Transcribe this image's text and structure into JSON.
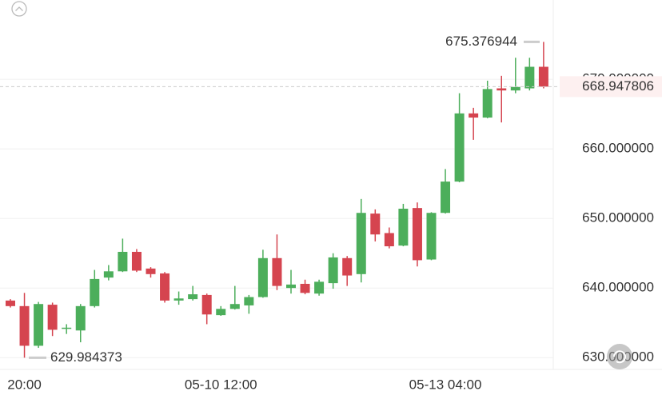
{
  "chart_data": {
    "type": "candlestick",
    "categories": [
      null,
      "20:00",
      null,
      null,
      null,
      null,
      null,
      null,
      null,
      null,
      null,
      null,
      null,
      null,
      null,
      "05-10 12:00",
      null,
      null,
      null,
      null,
      null,
      null,
      null,
      null,
      null,
      null,
      null,
      null,
      null,
      null,
      null,
      "05-13 04:00",
      null,
      null,
      null,
      null,
      null,
      null,
      null
    ],
    "open": [
      638.2,
      637.4,
      631.7,
      637.6,
      634.2,
      633.9,
      637.4,
      641.5,
      642.4,
      645.2,
      642.8,
      642.1,
      638.2,
      638.4,
      639.0,
      636.1,
      637.0,
      637.5,
      638.7,
      644.3,
      640.0,
      640.6,
      639.2,
      640.7,
      644.3,
      642.0,
      650.7,
      647.9,
      646.1,
      651.5,
      644.1,
      650.8,
      655.3,
      665.1,
      664.5,
      668.7,
      668.4,
      668.7,
      671.8
    ],
    "high": [
      638.4,
      639.3,
      638.0,
      637.9,
      634.8,
      637.7,
      642.6,
      643.3,
      647.1,
      645.6,
      643.0,
      642.3,
      639.5,
      640.3,
      639.2,
      637.4,
      640.3,
      639.0,
      645.5,
      647.7,
      642.6,
      641.2,
      641.2,
      645.0,
      644.6,
      652.8,
      651.3,
      648.7,
      652.1,
      652.3,
      650.9,
      657.1,
      668.0,
      665.9,
      669.8,
      670.5,
      673.1,
      673.1,
      675.376944
    ],
    "low": [
      637.2,
      629.984373,
      631.4,
      633.1,
      633.4,
      632.2,
      637.2,
      641.1,
      642.3,
      642.3,
      641.5,
      637.9,
      637.6,
      638.2,
      634.8,
      636.0,
      636.9,
      636.3,
      638.6,
      639.7,
      639.2,
      639.1,
      638.9,
      639.9,
      640.3,
      640.8,
      646.7,
      645.7,
      646.0,
      643.1,
      644.0,
      650.7,
      655.2,
      661.3,
      664.4,
      663.8,
      668.0,
      668.4,
      668.7
    ],
    "close": [
      637.4,
      631.7,
      637.7,
      634.0,
      634.3,
      637.4,
      641.3,
      642.4,
      645.2,
      642.5,
      642.0,
      638.2,
      638.5,
      639.1,
      636.2,
      637.0,
      637.7,
      638.7,
      644.3,
      640.3,
      640.5,
      639.3,
      640.9,
      644.4,
      641.8,
      650.8,
      647.7,
      646.0,
      651.4,
      644.0,
      650.8,
      655.3,
      665.1,
      664.5,
      668.6,
      668.4,
      668.9,
      671.8,
      668.947806
    ],
    "up_color": "#4cae5b",
    "down_color": "#d5444f",
    "ylim": [
      628.3,
      681.4
    ],
    "yticks": [
      {
        "value": 630,
        "label": "630.000000"
      },
      {
        "value": 640,
        "label": "640.000000"
      },
      {
        "value": 650,
        "label": "650.000000"
      },
      {
        "value": 660,
        "label": "660.000000"
      },
      {
        "value": 670,
        "label": "670.000000"
      }
    ],
    "grid": true,
    "high_marker": 675.376944,
    "low_marker": 629.984373,
    "last_price": 668.947806
  }
}
